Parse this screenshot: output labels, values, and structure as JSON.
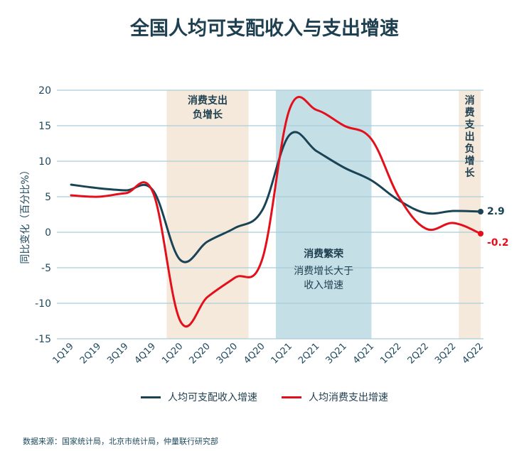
{
  "chart_data": {
    "type": "line",
    "title": "全国人均可支配收入与支出增速",
    "ylabel": "同比变化（百分比%）",
    "ylim": [
      -15,
      20
    ],
    "yticks": [
      20,
      15,
      10,
      5,
      0,
      -5,
      -10,
      -15
    ],
    "categories": [
      "1Q19",
      "2Q19",
      "3Q19",
      "4Q19",
      "1Q20",
      "2Q20",
      "3Q20",
      "4Q20",
      "1Q21",
      "2Q21",
      "3Q21",
      "4Q21",
      "1Q22",
      "2Q22",
      "3Q22",
      "4Q22"
    ],
    "series": [
      {
        "name": "人均可支配收入增速",
        "color": "#1a4356",
        "values": [
          6.7,
          6.2,
          5.9,
          5.9,
          -3.9,
          -1.3,
          0.6,
          3.1,
          13.7,
          11.4,
          9.1,
          7.3,
          4.5,
          2.7,
          3.0,
          2.9
        ],
        "end_label": "2.9"
      },
      {
        "name": "人均消费支出增速",
        "color": "#e3101c",
        "values": [
          5.2,
          5.0,
          5.5,
          5.6,
          -12.5,
          -9.1,
          -6.4,
          -3.8,
          17.3,
          17.2,
          15.0,
          13.1,
          5.0,
          0.5,
          1.3,
          -0.2
        ],
        "end_label": "-0.2"
      }
    ],
    "bands": [
      {
        "from": 3.5,
        "to": 6.5,
        "color": "#f5e9dc",
        "label_lines": [
          "消费支出",
          "负增长"
        ]
      },
      {
        "from": 7.5,
        "to": 11.0,
        "color": "#c5dfe7",
        "label_lines": [
          "消费繁荣"
        ],
        "sub_lines": [
          "消费增长大于",
          "收入增速"
        ]
      },
      {
        "from": 14.2,
        "to": 15.0,
        "color": "#f5e9dc",
        "label_lines": [
          "消",
          "费",
          "支",
          "出",
          "负",
          "增",
          "长"
        ]
      }
    ],
    "legend": "bottom-center",
    "grid": true
  },
  "source": "数据来源：国家统计局，北京市统计局，仲量联行研究部"
}
